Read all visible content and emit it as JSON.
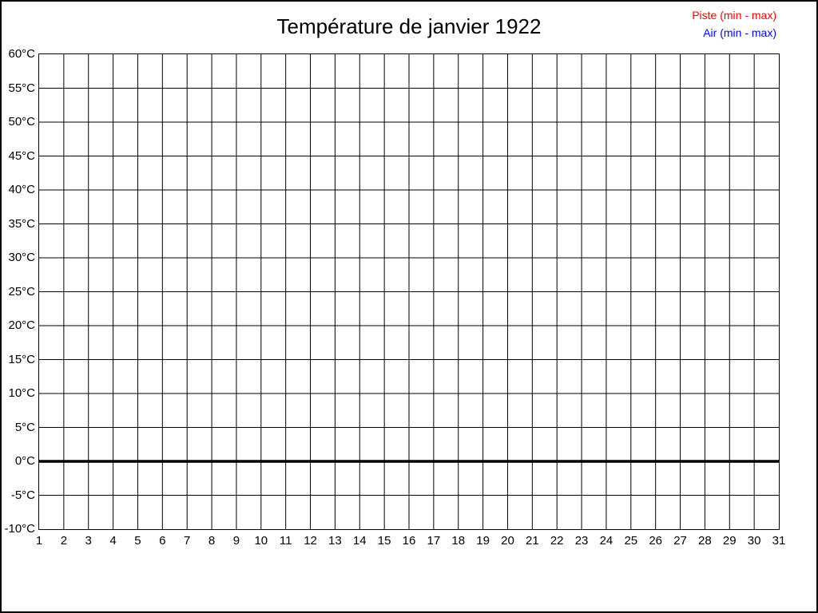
{
  "chart_data": {
    "type": "line",
    "title": "Température de janvier 1922",
    "xlabel": "",
    "ylabel": "",
    "x_tick_labels": [
      "1",
      "2",
      "3",
      "4",
      "5",
      "6",
      "7",
      "8",
      "9",
      "10",
      "11",
      "12",
      "13",
      "14",
      "15",
      "16",
      "17",
      "18",
      "19",
      "20",
      "21",
      "22",
      "23",
      "24",
      "25",
      "26",
      "27",
      "28",
      "29",
      "30",
      "31"
    ],
    "y_tick_labels": [
      "60°C",
      "55°C",
      "50°C",
      "45°C",
      "40°C",
      "35°C",
      "30°C",
      "25°C",
      "20°C",
      "15°C",
      "10°C",
      "5°C",
      "0°C",
      "-5°C",
      "-10°C"
    ],
    "ylim": [
      -10,
      60
    ],
    "ytick_step": 5,
    "xlim": [
      1,
      31
    ],
    "grid": true,
    "grid_color": "#000000",
    "zero_line": {
      "value": 0,
      "thick": true,
      "color": "#000000"
    },
    "legend_position": "top-right",
    "legend": [
      {
        "label": "Piste (min - max)",
        "color": "#FF0000"
      },
      {
        "label": "Air (min - max)",
        "color": "#0000FF"
      }
    ],
    "series": [
      {
        "name": "Piste (min - max)",
        "color": "#FF0000",
        "values": []
      },
      {
        "name": "Air (min - max)",
        "color": "#0000FF",
        "values": []
      }
    ]
  }
}
